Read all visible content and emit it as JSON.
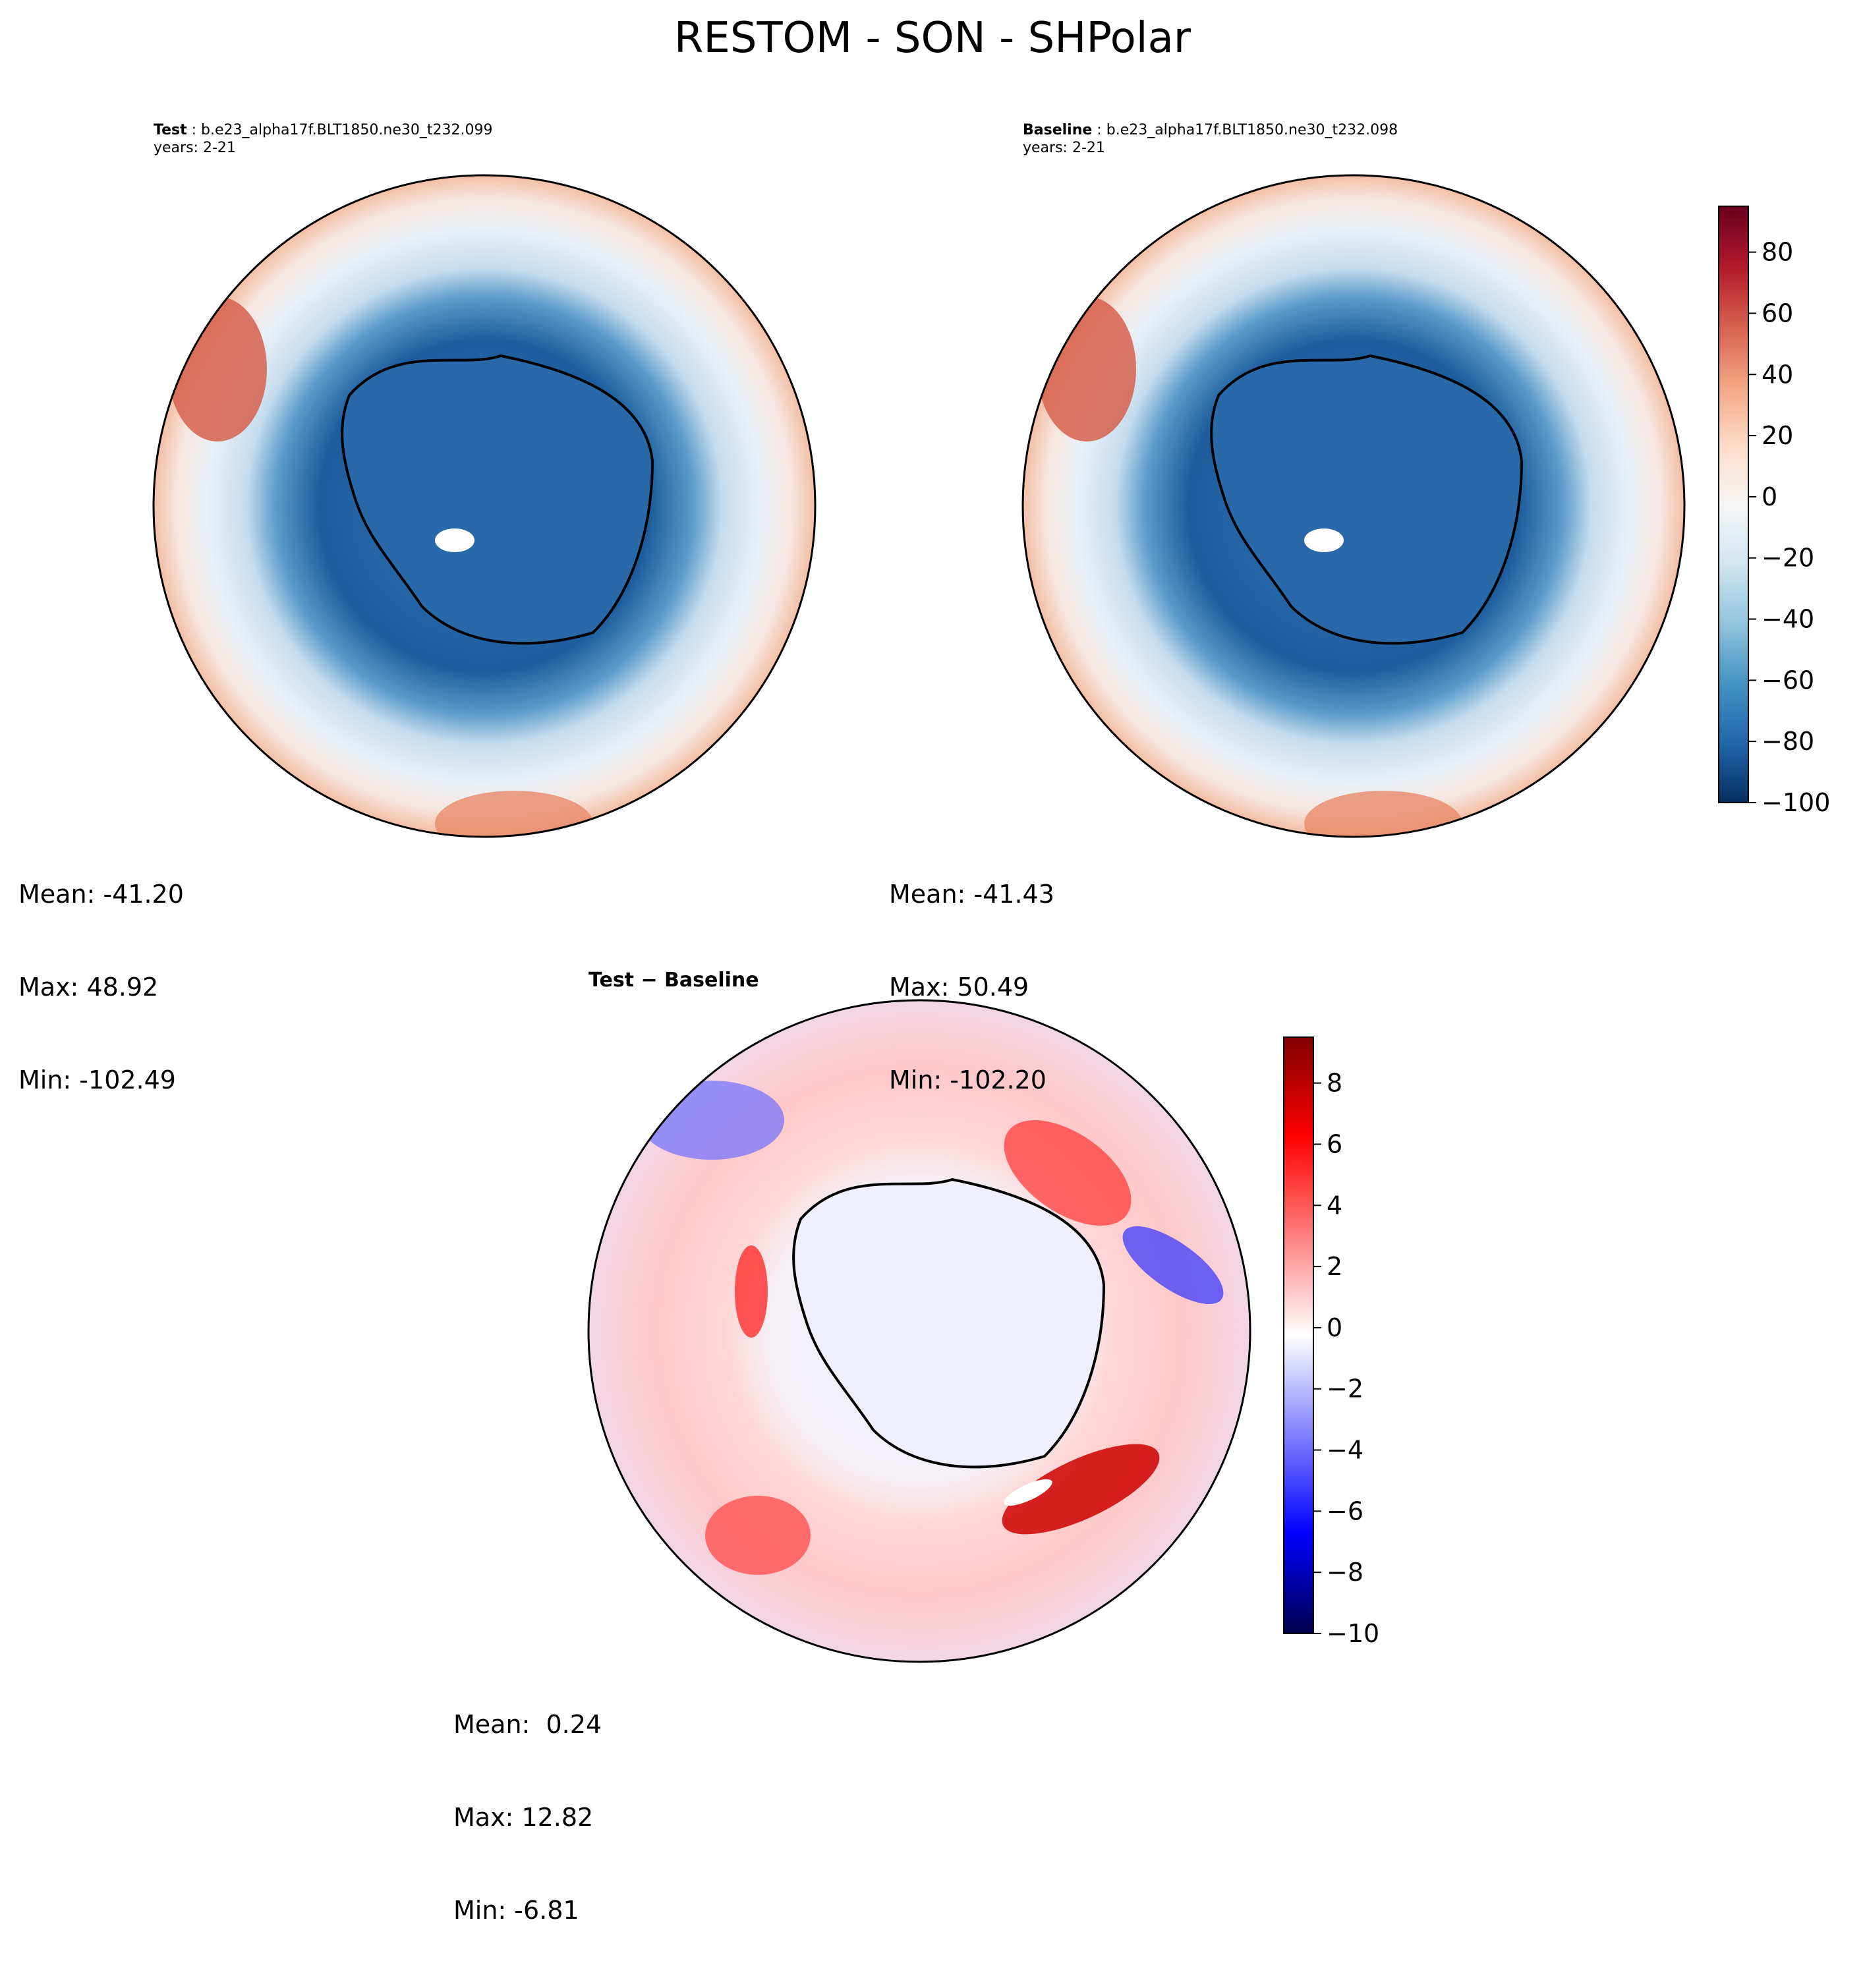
{
  "figure": {
    "title": "RESTOM - SON - SHPolar"
  },
  "panels": {
    "test": {
      "label": "Test",
      "case_name": "b.e23_alpha17f.BLT1850.ne30_t232.099",
      "years": "years: 2-21",
      "stats": {
        "mean": "Mean: -41.20",
        "max": "Max: 48.92",
        "min": "Min: -102.49"
      }
    },
    "baseline": {
      "label": "Baseline",
      "case_name": "b.e23_alpha17f.BLT1850.ne30_t232.098",
      "years": "years: 2-21",
      "stats": {
        "mean": "Mean: -41.43",
        "max": "Max: 50.49",
        "min": "Min: -102.20"
      }
    },
    "diff": {
      "label": "Test − Baseline",
      "stats": {
        "mean": "Mean:  0.24",
        "max": "Max: 12.82",
        "min": "Min: -6.81"
      }
    }
  },
  "chart_data": [
    {
      "type": "heatmap",
      "name": "Test",
      "projection": "south-polar-stereographic",
      "colormap": "RdBu_r",
      "vmin": -100,
      "vmax": 95,
      "stats": {
        "mean": -41.2,
        "max": 48.92,
        "min": -102.49
      }
    },
    {
      "type": "heatmap",
      "name": "Baseline",
      "projection": "south-polar-stereographic",
      "colormap": "RdBu_r",
      "vmin": -100,
      "vmax": 95,
      "stats": {
        "mean": -41.43,
        "max": 50.49,
        "min": -102.2
      }
    },
    {
      "type": "heatmap",
      "name": "Test − Baseline",
      "projection": "south-polar-stereographic",
      "colormap": "seismic",
      "vmin": -10,
      "vmax": 9.5,
      "stats": {
        "mean": 0.24,
        "max": 12.82,
        "min": -6.81
      }
    }
  ],
  "colorbars": {
    "main": {
      "range": [
        -100,
        95
      ],
      "ticks": [
        {
          "value": 80,
          "label": "80"
        },
        {
          "value": 60,
          "label": "60"
        },
        {
          "value": 40,
          "label": "40"
        },
        {
          "value": 20,
          "label": "20"
        },
        {
          "value": 0,
          "label": "0"
        },
        {
          "value": -20,
          "label": "−20"
        },
        {
          "value": -40,
          "label": "−40"
        },
        {
          "value": -60,
          "label": "−60"
        },
        {
          "value": -80,
          "label": "−80"
        },
        {
          "value": -100,
          "label": "−100"
        }
      ],
      "colors": [
        "#053061",
        "#2166ac",
        "#4393c3",
        "#92c5de",
        "#d1e5f0",
        "#f7f7f7",
        "#fddbc7",
        "#f4a582",
        "#d6604d",
        "#b2182b",
        "#67001f"
      ]
    },
    "diff": {
      "range": [
        -10,
        9.5
      ],
      "ticks": [
        {
          "value": 8,
          "label": "8"
        },
        {
          "value": 6,
          "label": "6"
        },
        {
          "value": 4,
          "label": "4"
        },
        {
          "value": 2,
          "label": "2"
        },
        {
          "value": 0,
          "label": "0"
        },
        {
          "value": -2,
          "label": "−2"
        },
        {
          "value": -4,
          "label": "−4"
        },
        {
          "value": -6,
          "label": "−6"
        },
        {
          "value": -8,
          "label": "−8"
        },
        {
          "value": -10,
          "label": "−10"
        }
      ],
      "colors": [
        "#00004c",
        "#0000ff",
        "#8080ff",
        "#ffffff",
        "#ff8080",
        "#ff0000",
        "#800000"
      ]
    }
  }
}
